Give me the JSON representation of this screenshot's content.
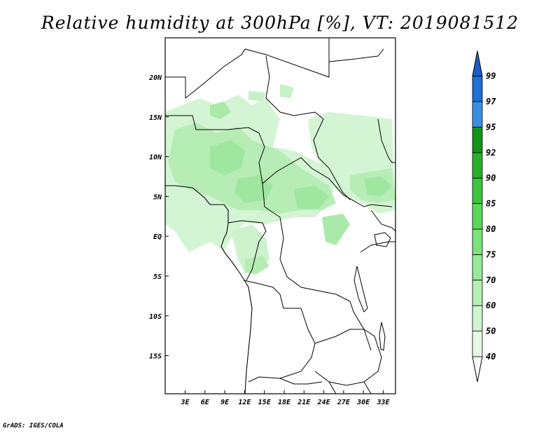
{
  "title": "Relative humidity at 300hPa [%], VT: 2019081512",
  "credit": "GrADS: IGES/COLA",
  "map": {
    "y_ticks": [
      "20N",
      "15N",
      "10N",
      "5N",
      "EQ",
      "5S",
      "10S",
      "15S"
    ],
    "x_ticks": [
      "3E",
      "6E",
      "9E",
      "12E",
      "15E",
      "18E",
      "21E",
      "24E",
      "27E",
      "30E",
      "33E"
    ],
    "lon_range": [
      0,
      35
    ],
    "lat_range": [
      -20,
      25
    ]
  },
  "colorbar": {
    "levels": [
      "40",
      "50",
      "60",
      "70",
      "75",
      "80",
      "85",
      "90",
      "92",
      "95",
      "97",
      "99"
    ],
    "colors": [
      "#e6f9e6",
      "#cff4cf",
      "#b4efb3",
      "#98e898",
      "#7be27a",
      "#5bd65b",
      "#3cc43c",
      "#2aae2a",
      "#149414",
      "#3a8fe0",
      "#1e6fd6",
      "#0a4fb8",
      "#0a48aa"
    ],
    "above_color": "#1a5fc9"
  },
  "chart_data": {
    "type": "heatmap",
    "title": "Relative humidity at 300hPa [%], VT: 2019081512",
    "variable": "Relative humidity",
    "units": "%",
    "pressure_level": "300hPa",
    "valid_time": "2019081512",
    "contour_levels": [
      40,
      50,
      60,
      70,
      75,
      80,
      85,
      90,
      92,
      95,
      97,
      99
    ],
    "x_ticks": [
      "3E",
      "6E",
      "9E",
      "12E",
      "15E",
      "18E",
      "21E",
      "24E",
      "27E",
      "30E",
      "33E"
    ],
    "y_ticks": [
      "20N",
      "15N",
      "10N",
      "5N",
      "EQ",
      "5S",
      "10S",
      "15S"
    ],
    "humid_regions": [
      {
        "lon": [
          0,
          15
        ],
        "lat": [
          3,
          16
        ],
        "max_level": 75
      },
      {
        "lon": [
          15,
          27
        ],
        "lat": [
          3,
          12
        ],
        "max_level": 75
      },
      {
        "lon": [
          28,
          35
        ],
        "lat": [
          4,
          10
        ],
        "max_level": 75
      },
      {
        "lon": [
          2,
          14
        ],
        "lat": [
          -2,
          4
        ],
        "max_level": 60
      },
      {
        "lon": [
          11,
          15
        ],
        "lat": [
          -5,
          -2
        ],
        "max_level": 60
      }
    ]
  }
}
